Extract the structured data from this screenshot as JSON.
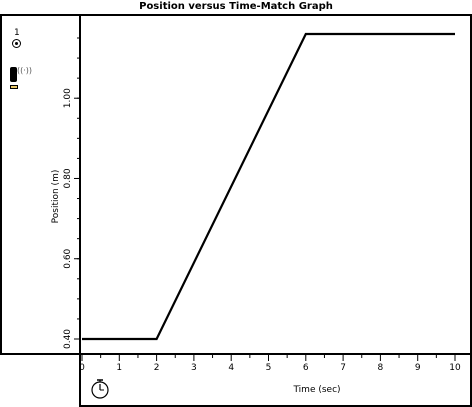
{
  "window": {
    "title": "Position versus Time-Match Graph"
  },
  "sidebar": {
    "probe_number": "1",
    "sensor_icon": "motion-detector-icon",
    "probe_icon": "probe-selector-icon",
    "waves": "((·))"
  },
  "footer": {
    "timer_icon": "stopwatch-icon"
  },
  "chart_data": {
    "type": "line",
    "title": "Position versus Time-Match Graph",
    "xlabel": "Time (sec)",
    "ylabel": "Position (m)",
    "xlim": [
      0,
      10
    ],
    "ylim": [
      0.38,
      1.19
    ],
    "x_ticks": [
      "0",
      "1",
      "2",
      "3",
      "4",
      "5",
      "6",
      "7",
      "8",
      "9",
      "10"
    ],
    "y_ticks": [
      "0.40",
      "0.60",
      "0.80",
      "1.00"
    ],
    "grid": false,
    "series": [
      {
        "name": "",
        "x": [
          0,
          2,
          6,
          10
        ],
        "y": [
          0.4,
          0.4,
          1.16,
          1.16
        ],
        "color": "#000000"
      }
    ]
  }
}
